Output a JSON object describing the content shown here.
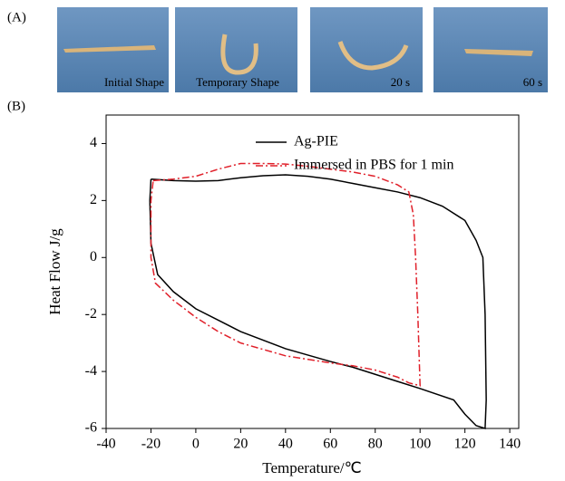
{
  "panel_a": {
    "label": "(A)",
    "captions": [
      "Initial Shape",
      "Temporary Shape",
      "20 s",
      "60 s"
    ]
  },
  "chart_data": {
    "type": "line",
    "panel_label": "(B)",
    "x_label": "Temperature/℃",
    "y_label": "Heat Flow J/g",
    "xlim": [
      -40,
      144
    ],
    "ylim": [
      -6,
      5
    ],
    "xticks": [
      -40,
      -20,
      0,
      20,
      40,
      60,
      80,
      100,
      120,
      140
    ],
    "yticks": [
      -6,
      -4,
      -2,
      0,
      2,
      4
    ],
    "series": [
      {
        "name": "Ag-PIE",
        "color": "#000000",
        "dash": "solid",
        "x": [
          -20,
          -10,
          0,
          10,
          20,
          30,
          40,
          50,
          60,
          70,
          80,
          90,
          100,
          110,
          120,
          125,
          128,
          129,
          129.5,
          129,
          125,
          120,
          115,
          100,
          90,
          80,
          70,
          60,
          40,
          20,
          10,
          0,
          -10,
          -17,
          -20,
          -20.5,
          -20
        ],
        "values": [
          2.75,
          2.7,
          2.68,
          2.7,
          2.8,
          2.87,
          2.9,
          2.85,
          2.75,
          2.6,
          2.45,
          2.3,
          2.1,
          1.8,
          1.3,
          0.6,
          0,
          -2,
          -5,
          -6,
          -5.9,
          -5.5,
          -5,
          -4.6,
          -4.35,
          -4.1,
          -3.85,
          -3.65,
          -3.2,
          -2.6,
          -2.2,
          -1.8,
          -1.2,
          -0.6,
          0.5,
          2,
          2.75
        ]
      },
      {
        "name": "Immersed in PBS for 1 min",
        "color": "#e0202a",
        "dash": "dashdot",
        "x": [
          -19,
          -10,
          0,
          10,
          20,
          30,
          40,
          50,
          60,
          70,
          80,
          90,
          95,
          97,
          98,
          99,
          100,
          95,
          90,
          80,
          70,
          60,
          40,
          20,
          10,
          0,
          -10,
          -18,
          -20,
          -20,
          -19
        ],
        "values": [
          2.7,
          2.75,
          2.85,
          3.1,
          3.3,
          3.3,
          3.28,
          3.2,
          3.1,
          3.0,
          2.85,
          2.55,
          2.3,
          1.5,
          0,
          -2,
          -4.5,
          -4.4,
          -4.2,
          -3.95,
          -3.8,
          -3.7,
          -3.45,
          -3.0,
          -2.6,
          -2.1,
          -1.5,
          -0.9,
          0,
          2,
          2.7
        ]
      }
    ]
  }
}
